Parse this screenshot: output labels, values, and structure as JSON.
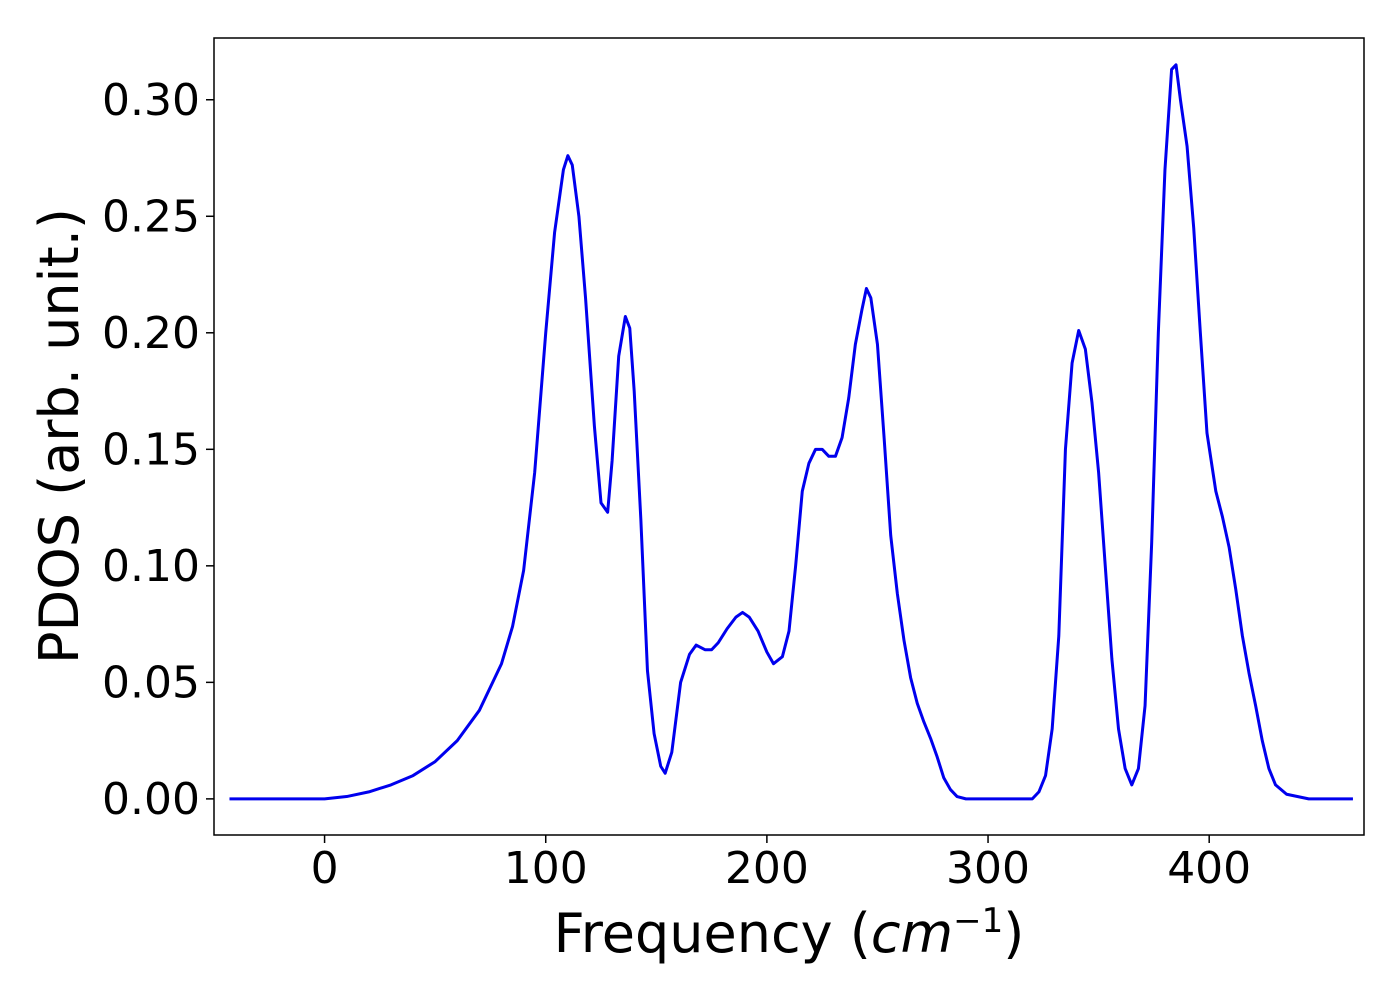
{
  "chart_data": {
    "type": "line",
    "title": "",
    "xlabel": "Frequency",
    "xlabel_unit_base": "cm",
    "xlabel_unit_exp": "−1",
    "ylabel": "PDOS (arb. unit.)",
    "xlim": [
      -50,
      470
    ],
    "ylim": [
      -0.0155,
      0.3265
    ],
    "xticks": [
      0,
      100,
      200,
      300,
      400
    ],
    "xtick_labels": [
      "0",
      "100",
      "200",
      "300",
      "400"
    ],
    "yticks": [
      0.0,
      0.05,
      0.1,
      0.15,
      0.2,
      0.25,
      0.3
    ],
    "ytick_labels": [
      "0.00",
      "0.05",
      "0.10",
      "0.15",
      "0.20",
      "0.25",
      "0.30"
    ],
    "grid": false,
    "legend": "none",
    "colors": {
      "line": "#0000ee",
      "axes": "#000000",
      "background": "#ffffff"
    },
    "series": [
      {
        "x": [
          -43,
          0,
          10,
          20,
          30,
          40,
          50,
          60,
          70,
          80,
          85,
          90,
          95,
          100,
          104,
          108,
          110,
          112,
          115,
          118,
          122,
          125,
          128,
          130,
          133,
          136,
          138,
          140,
          143,
          146,
          149,
          152,
          154,
          157,
          161,
          165,
          168,
          172,
          175,
          178,
          182,
          186,
          189,
          192,
          196,
          200,
          203,
          207,
          210,
          213,
          216,
          219,
          222,
          225,
          228,
          231,
          234,
          237,
          240,
          243,
          245,
          247,
          250,
          253,
          256,
          259,
          262,
          265,
          268,
          271,
          274,
          277,
          280,
          283,
          286,
          290,
          300,
          310,
          320,
          323,
          326,
          329,
          332,
          335,
          338,
          341,
          344,
          347,
          350,
          353,
          356,
          359,
          362,
          365,
          368,
          371,
          374,
          377,
          380,
          383,
          385,
          387,
          390,
          393,
          396,
          399,
          403,
          406,
          409,
          412,
          415,
          418,
          421,
          424,
          427,
          430,
          435,
          445,
          465
        ],
        "y": [
          0.0,
          0.0,
          0.001,
          0.003,
          0.006,
          0.01,
          0.016,
          0.025,
          0.038,
          0.058,
          0.074,
          0.098,
          0.14,
          0.2,
          0.243,
          0.27,
          0.276,
          0.272,
          0.25,
          0.215,
          0.16,
          0.127,
          0.123,
          0.145,
          0.19,
          0.207,
          0.202,
          0.175,
          0.12,
          0.055,
          0.028,
          0.014,
          0.011,
          0.02,
          0.05,
          0.062,
          0.066,
          0.064,
          0.064,
          0.067,
          0.073,
          0.078,
          0.08,
          0.078,
          0.072,
          0.063,
          0.058,
          0.061,
          0.072,
          0.1,
          0.132,
          0.144,
          0.15,
          0.15,
          0.147,
          0.147,
          0.155,
          0.172,
          0.195,
          0.21,
          0.219,
          0.215,
          0.195,
          0.155,
          0.113,
          0.088,
          0.068,
          0.052,
          0.041,
          0.033,
          0.026,
          0.018,
          0.009,
          0.004,
          0.001,
          0.0,
          0.0,
          0.0,
          0.0,
          0.003,
          0.01,
          0.03,
          0.07,
          0.15,
          0.187,
          0.201,
          0.193,
          0.17,
          0.14,
          0.1,
          0.06,
          0.03,
          0.013,
          0.006,
          0.013,
          0.04,
          0.11,
          0.2,
          0.27,
          0.313,
          0.315,
          0.3,
          0.28,
          0.245,
          0.2,
          0.157,
          0.132,
          0.121,
          0.108,
          0.09,
          0.07,
          0.054,
          0.04,
          0.025,
          0.013,
          0.006,
          0.002,
          0.0,
          0.0
        ]
      }
    ]
  }
}
